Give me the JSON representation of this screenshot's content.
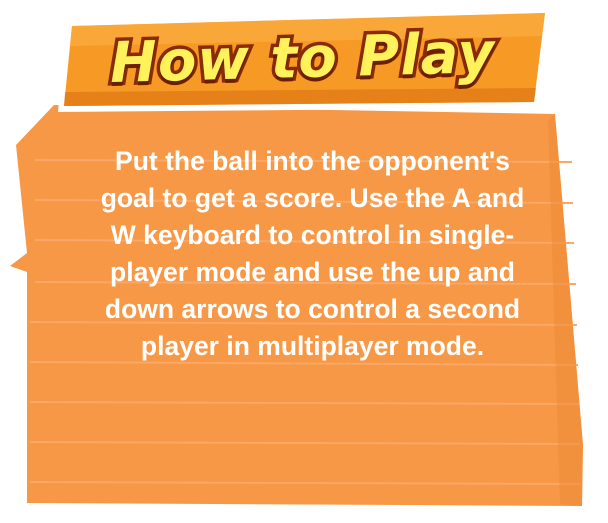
{
  "title": "How to Play",
  "instructions": "Put the ball into the opponent's goal to get a score. Use the A and W keyboard to control in single-player mode and use the up and down arrows to control a second player in multiplayer mode.",
  "colors": {
    "panel_fill": "#f69845",
    "panel_border": "#ffffff",
    "panel_line": "#f9a867",
    "banner_fill": "#f79a25",
    "banner_dark": "#d86d10",
    "title_fill": "#fff25a",
    "title_outline": "#8a2a06",
    "text": "#ffffff"
  }
}
